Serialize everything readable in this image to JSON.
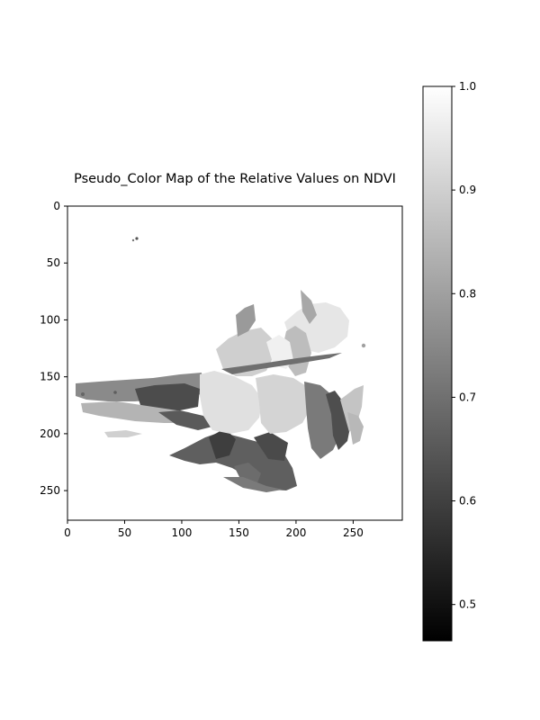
{
  "chart_data": {
    "type": "heatmap",
    "title": "Pseudo_Color Map of the Relative Values on NDVI",
    "xlabel": "",
    "ylabel": "",
    "xlim": [
      0,
      293
    ],
    "ylim": [
      276,
      0
    ],
    "x_ticks": [
      "0",
      "50",
      "100",
      "150",
      "200",
      "250"
    ],
    "y_ticks": [
      "0",
      "50",
      "100",
      "150",
      "200",
      "250"
    ],
    "colormap": "gray",
    "colorbar": {
      "min": 0.465,
      "max": 1.0,
      "ticks": [
        "0.5",
        "0.6",
        "0.7",
        "0.8",
        "0.9",
        "1.0"
      ]
    },
    "background_value": "white (masked / no data)"
  }
}
